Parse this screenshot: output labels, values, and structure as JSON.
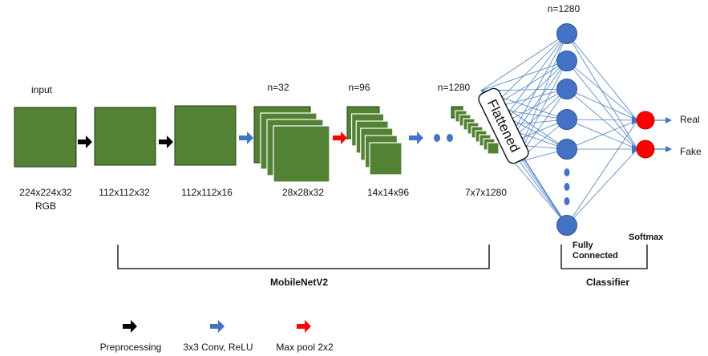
{
  "stages": [
    {
      "top": "input",
      "label": "224x224x32",
      "label2": "RGB"
    },
    {
      "label": "112x112x32"
    },
    {
      "label": "112x112x16"
    },
    {
      "top": "n=32",
      "label": "28x28x32"
    },
    {
      "top": "n=96",
      "label": "14x14x96"
    },
    {
      "top": "n=1280",
      "label": "7x7x1280"
    }
  ],
  "flattened": "Flattened",
  "fc_top": "n=1280",
  "outputs": [
    "Real",
    "Fake"
  ],
  "fully_connected": [
    "Fully",
    "Connected"
  ],
  "softmax": "Softmax",
  "groups": [
    "MobileNetV2",
    "Classifier"
  ],
  "legend": [
    "Preprocessing",
    "3x3 Conv, ReLU",
    "Max pool 2x2"
  ]
}
